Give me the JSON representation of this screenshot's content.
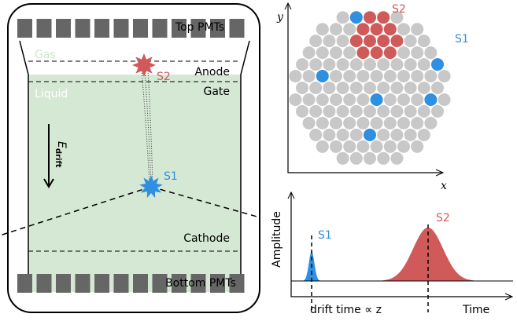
{
  "detector": {
    "top_pmts": "Top PMTs",
    "gas": "Gas",
    "liquid": "Liquid",
    "anode": "Anode",
    "gate": "Gate",
    "s2": "S2",
    "field": {
      "symbol": "E",
      "subscript": "drift"
    },
    "s1": "S1",
    "cathode": "Cathode",
    "bottom_pmts": "Bottom PMTs"
  },
  "hit_pattern": {
    "y_label": "y",
    "x_label": "x",
    "s2": "S2",
    "s1": "S1"
  },
  "waveform": {
    "y_label": "Amplitude",
    "s1": "S1",
    "s2": "S2",
    "drift_label": "drift time ∝ z",
    "x_label": "Time"
  }
}
